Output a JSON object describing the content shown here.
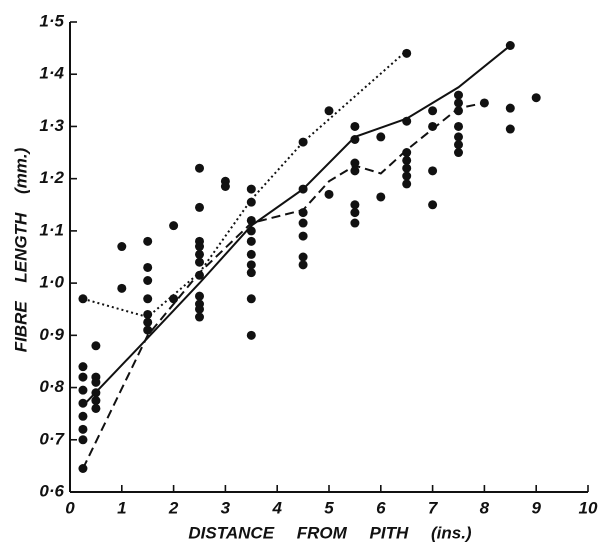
{
  "chart_data": {
    "type": "scatter",
    "xlabel": "DISTANCE FROM PITH (ins.)",
    "ylabel": "FIBRE LENGTH (mm.)",
    "xlim": [
      0,
      10
    ],
    "ylim": [
      0.6,
      1.5
    ],
    "xticks": [
      0,
      1,
      2,
      3,
      4,
      5,
      6,
      7,
      8,
      9,
      10
    ],
    "yticks": [
      {
        "value": 0.6,
        "label": "0·6"
      },
      {
        "value": 0.7,
        "label": "0·7"
      },
      {
        "value": 0.8,
        "label": "0·8"
      },
      {
        "value": 0.9,
        "label": "0·9"
      },
      {
        "value": 1.0,
        "label": "1·0"
      },
      {
        "value": 1.1,
        "label": "1·1"
      },
      {
        "value": 1.2,
        "label": "1·2"
      },
      {
        "value": 1.3,
        "label": "1·3"
      },
      {
        "value": 1.4,
        "label": "1·4"
      },
      {
        "value": 1.5,
        "label": "1·5"
      }
    ],
    "color": "#111111",
    "points": {
      "x": [
        0.25,
        0.25,
        0.25,
        0.25,
        0.25,
        0.25,
        0.25,
        0.25,
        0.25,
        0.5,
        0.5,
        0.5,
        0.5,
        0.5,
        0.5,
        1,
        1,
        1.5,
        1.5,
        1.5,
        1.5,
        1.5,
        1.5,
        1.5,
        2,
        2,
        2.5,
        2.5,
        2.5,
        2.5,
        2.5,
        2.5,
        2.5,
        2.5,
        2.5,
        2.5,
        2.5,
        3,
        3,
        3.5,
        3.5,
        3.5,
        3.5,
        3.5,
        3.5,
        3.5,
        3.5,
        3.5,
        3.5,
        4.5,
        4.5,
        4.5,
        4.5,
        4.5,
        4.5,
        4.5,
        5,
        5,
        5.5,
        5.5,
        5.5,
        5.5,
        5.5,
        5.5,
        5.5,
        6,
        6,
        6.5,
        6.5,
        6.5,
        6.5,
        6.5,
        6.5,
        6.5,
        7,
        7,
        7,
        7,
        7.5,
        7.5,
        7.5,
        7.5,
        7.5,
        7.5,
        7.5,
        8,
        8.5,
        8.5,
        8.5,
        9
      ],
      "values": [
        0.84,
        0.82,
        0.795,
        0.77,
        0.745,
        0.72,
        0.7,
        0.645,
        0.97,
        0.88,
        0.82,
        0.81,
        0.79,
        0.775,
        0.76,
        1.07,
        0.99,
        1.08,
        1.03,
        1.005,
        0.97,
        0.94,
        0.925,
        0.91,
        1.11,
        0.97,
        1.22,
        1.145,
        1.08,
        1.07,
        1.055,
        1.04,
        1.015,
        0.975,
        0.96,
        0.95,
        0.935,
        1.195,
        1.185,
        1.18,
        1.155,
        1.12,
        1.1,
        1.08,
        1.055,
        1.035,
        1.02,
        0.97,
        0.9,
        1.27,
        1.18,
        1.135,
        1.115,
        1.09,
        1.05,
        1.035,
        1.33,
        1.17,
        1.3,
        1.275,
        1.23,
        1.215,
        1.15,
        1.135,
        1.115,
        1.28,
        1.165,
        1.44,
        1.31,
        1.25,
        1.235,
        1.22,
        1.205,
        1.19,
        1.33,
        1.3,
        1.215,
        1.15,
        1.36,
        1.345,
        1.33,
        1.3,
        1.28,
        1.265,
        1.25,
        1.345,
        1.455,
        1.335,
        1.295,
        1.355
      ]
    },
    "lines": [
      {
        "style": "solid",
        "x": [
          0.25,
          1.5,
          2.5,
          3.5,
          4.5,
          5.5,
          6.5,
          7.5,
          8.5
        ],
        "values": [
          0.765,
          0.895,
          1.0,
          1.11,
          1.18,
          1.28,
          1.315,
          1.375,
          1.455
        ]
      },
      {
        "style": "dashed",
        "x": [
          0.25,
          1.5,
          2.5,
          3.5,
          4.5,
          5,
          5.5,
          6,
          6.5,
          7.5,
          8
        ],
        "values": [
          0.645,
          0.9,
          1.02,
          1.115,
          1.14,
          1.195,
          1.225,
          1.21,
          1.255,
          1.335,
          1.345
        ]
      },
      {
        "style": "dotted",
        "x": [
          0.25,
          1.5,
          2.5,
          3.5,
          4.5,
          6.5
        ],
        "values": [
          0.97,
          0.935,
          1.02,
          1.16,
          1.27,
          1.445
        ]
      }
    ]
  }
}
